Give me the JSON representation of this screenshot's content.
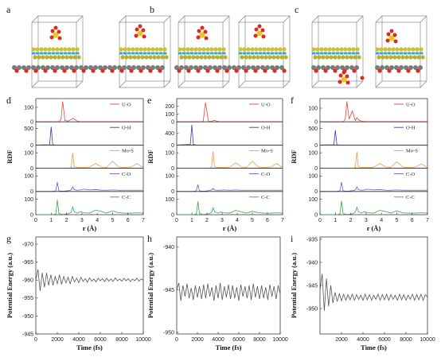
{
  "structure_panels": [
    {
      "label": "a"
    },
    {
      "label": "b"
    },
    {
      "label": "c"
    }
  ],
  "chart_data": [
    {
      "type": "line",
      "label": "d",
      "stacked": true,
      "xlabel": "r (Å)",
      "ylabel": "RDF",
      "xlim": [
        0,
        7
      ],
      "xticks": [
        0,
        1,
        2,
        3,
        4,
        5,
        6,
        7
      ],
      "x": [
        0,
        0.9,
        1.0,
        1.1,
        1.3,
        1.4,
        1.5,
        1.65,
        1.75,
        1.9,
        2.1,
        2.3,
        2.4,
        2.5,
        2.7,
        2.9,
        3.1,
        3.5,
        3.9,
        4.3,
        4.6,
        5.0,
        5.4,
        5.8,
        6.2,
        6.6,
        7
      ],
      "series": [
        {
          "name": "U-O",
          "color": "#e8453c",
          "ylim": [
            0,
            160
          ],
          "yticks": [
            0,
            100
          ],
          "values": [
            0,
            0,
            0,
            0,
            0,
            0,
            0,
            20,
            140,
            10,
            5,
            15,
            25,
            18,
            5,
            1,
            1,
            1,
            1,
            1,
            1,
            1,
            1,
            1,
            1,
            1,
            1
          ]
        },
        {
          "name": "O-H",
          "color": "#3a3ab8",
          "ylim": [
            0,
            700
          ],
          "yticks": [
            0,
            500
          ],
          "values": [
            0,
            10,
            550,
            10,
            0,
            0,
            0,
            0,
            0,
            0,
            0,
            0,
            0,
            0,
            0,
            0,
            0,
            0,
            0,
            0,
            0,
            0,
            0,
            0,
            0,
            0,
            0
          ]
        },
        {
          "name": "Mo-S",
          "color": "#f39a4c",
          "ylim": [
            0,
            150
          ],
          "yticks": [
            0,
            100
          ],
          "values": [
            0,
            0,
            0,
            0,
            0,
            0,
            0,
            0,
            0,
            0,
            0,
            5,
            100,
            10,
            5,
            5,
            5,
            8,
            30,
            8,
            5,
            45,
            8,
            5,
            8,
            30,
            5
          ]
        },
        {
          "name": "C-O",
          "color": "#6a5acd",
          "ylim": [
            0,
            150
          ],
          "yticks": [
            0,
            100
          ],
          "values": [
            0,
            0,
            0,
            0,
            5,
            60,
            5,
            2,
            2,
            3,
            5,
            10,
            30,
            12,
            8,
            10,
            15,
            10,
            12,
            8,
            8,
            10,
            8,
            8,
            8,
            8,
            8
          ]
        },
        {
          "name": "C-C",
          "color": "#3aa64a",
          "ylim": [
            0,
            150
          ],
          "yticks": [
            0,
            100
          ],
          "values": [
            0,
            0,
            0,
            0,
            5,
            95,
            10,
            3,
            2,
            3,
            5,
            15,
            50,
            20,
            10,
            20,
            12,
            10,
            30,
            20,
            10,
            25,
            12,
            10,
            10,
            12,
            10
          ]
        }
      ]
    },
    {
      "type": "line",
      "label": "e",
      "stacked": true,
      "xlabel": "r (Å)",
      "ylabel": "RDF",
      "xlim": [
        0,
        7
      ],
      "xticks": [
        0,
        1,
        2,
        3,
        4,
        5,
        6,
        7
      ],
      "x": [
        0,
        0.9,
        1.0,
        1.1,
        1.3,
        1.4,
        1.5,
        1.65,
        1.75,
        1.9,
        2.1,
        2.3,
        2.4,
        2.5,
        2.7,
        2.9,
        3.1,
        3.5,
        3.9,
        4.3,
        4.6,
        5.0,
        5.4,
        5.8,
        6.2,
        6.6,
        7
      ],
      "series": [
        {
          "name": "U-O",
          "color": "#e8453c",
          "ylim": [
            0,
            300
          ],
          "yticks": [
            0,
            100,
            200
          ],
          "values": [
            0,
            0,
            0,
            0,
            0,
            0,
            0,
            0,
            5,
            250,
            5,
            5,
            15,
            20,
            5,
            2,
            2,
            2,
            2,
            2,
            2,
            2,
            2,
            2,
            2,
            2,
            2
          ]
        },
        {
          "name": "O-H",
          "color": "#3a3ab8",
          "ylim": [
            0,
            800
          ],
          "yticks": [
            0,
            400
          ],
          "values": [
            0,
            20,
            700,
            20,
            0,
            0,
            0,
            0,
            0,
            0,
            0,
            0,
            0,
            0,
            0,
            0,
            0,
            0,
            0,
            0,
            0,
            0,
            0,
            0,
            0,
            0,
            0
          ]
        },
        {
          "name": "Mo-S",
          "color": "#f39a4c",
          "ylim": [
            0,
            150
          ],
          "yticks": [
            0,
            100
          ],
          "values": [
            0,
            0,
            0,
            0,
            0,
            0,
            0,
            0,
            0,
            0,
            0,
            5,
            110,
            10,
            5,
            5,
            5,
            8,
            35,
            8,
            5,
            45,
            8,
            5,
            8,
            30,
            5
          ]
        },
        {
          "name": "C-O",
          "color": "#6a5acd",
          "ylim": [
            0,
            150
          ],
          "yticks": [
            0,
            100
          ],
          "values": [
            0,
            0,
            0,
            0,
            5,
            45,
            5,
            2,
            2,
            3,
            5,
            10,
            20,
            10,
            8,
            8,
            10,
            8,
            10,
            8,
            8,
            8,
            8,
            8,
            8,
            8,
            8
          ]
        },
        {
          "name": "C-C",
          "color": "#3aa64a",
          "ylim": [
            0,
            150
          ],
          "yticks": [
            0,
            100
          ],
          "values": [
            0,
            0,
            0,
            0,
            5,
            85,
            10,
            3,
            2,
            3,
            5,
            15,
            45,
            20,
            10,
            18,
            12,
            10,
            28,
            18,
            10,
            22,
            12,
            10,
            10,
            12,
            10
          ]
        }
      ]
    },
    {
      "type": "line",
      "label": "f",
      "stacked": true,
      "xlabel": "r (Å)",
      "ylabel": "RDF",
      "xlim": [
        0,
        7
      ],
      "xticks": [
        0,
        1,
        2,
        3,
        4,
        5,
        6,
        7
      ],
      "x": [
        0,
        0.9,
        1.0,
        1.1,
        1.3,
        1.4,
        1.5,
        1.65,
        1.75,
        1.9,
        2.1,
        2.3,
        2.4,
        2.5,
        2.7,
        2.9,
        3.1,
        3.5,
        3.9,
        4.3,
        4.6,
        5.0,
        5.4,
        5.8,
        6.2,
        6.6,
        7
      ],
      "series": [
        {
          "name": "U-O",
          "color": "#e8453c",
          "ylim": [
            0,
            170
          ],
          "yticks": [
            0,
            100
          ],
          "values": [
            0,
            0,
            0,
            0,
            0,
            0,
            0,
            20,
            150,
            20,
            80,
            10,
            30,
            15,
            5,
            2,
            2,
            2,
            2,
            2,
            2,
            2,
            2,
            2,
            2,
            2,
            2
          ]
        },
        {
          "name": "O-H",
          "color": "#3a3ab8",
          "ylim": [
            0,
            700
          ],
          "yticks": [
            0,
            500
          ],
          "values": [
            0,
            10,
            450,
            10,
            0,
            0,
            0,
            0,
            0,
            0,
            0,
            0,
            0,
            0,
            0,
            0,
            0,
            0,
            0,
            0,
            0,
            0,
            0,
            0,
            0,
            0,
            0
          ]
        },
        {
          "name": "Mo-S",
          "color": "#f39a4c",
          "ylim": [
            0,
            150
          ],
          "yticks": [
            0,
            100
          ],
          "values": [
            0,
            0,
            0,
            0,
            0,
            0,
            0,
            0,
            0,
            0,
            0,
            5,
            105,
            10,
            5,
            5,
            5,
            8,
            30,
            8,
            5,
            42,
            8,
            5,
            8,
            28,
            5
          ]
        },
        {
          "name": "C-O",
          "color": "#6a5acd",
          "ylim": [
            0,
            150
          ],
          "yticks": [
            0,
            100
          ],
          "values": [
            0,
            0,
            0,
            0,
            5,
            60,
            5,
            2,
            2,
            3,
            5,
            10,
            30,
            12,
            8,
            10,
            15,
            10,
            12,
            8,
            8,
            10,
            8,
            8,
            8,
            8,
            8
          ]
        },
        {
          "name": "C-C",
          "color": "#3aa64a",
          "ylim": [
            0,
            150
          ],
          "yticks": [
            0,
            100
          ],
          "values": [
            0,
            0,
            0,
            0,
            5,
            90,
            10,
            3,
            2,
            3,
            5,
            15,
            48,
            20,
            10,
            20,
            12,
            10,
            28,
            20,
            10,
            25,
            12,
            10,
            10,
            12,
            10
          ]
        }
      ]
    },
    {
      "type": "line",
      "label": "g",
      "xlabel": "Time (fs)",
      "ylabel": "Potential Energy (a.u.)",
      "xlim": [
        0,
        10000
      ],
      "xticks": [
        0,
        2000,
        4000,
        6000,
        8000,
        10000
      ],
      "ylim": [
        -945,
        -972
      ],
      "yticks": [
        -970,
        -965,
        -960,
        -955,
        -950,
        -945
      ],
      "x": [
        0,
        200,
        400,
        600,
        800,
        1000,
        1200,
        1400,
        1600,
        1800,
        2000,
        2200,
        2400,
        2600,
        2800,
        3000,
        3200,
        3400,
        3600,
        3800,
        4000,
        4200,
        4400,
        4600,
        4800,
        5000,
        5200,
        5400,
        5600,
        5800,
        6000,
        6200,
        6400,
        6600,
        6800,
        7000,
        7200,
        7400,
        7600,
        7800,
        8000,
        8200,
        8400,
        8600,
        8800,
        9000,
        9200,
        9400,
        9600,
        9800,
        10000
      ],
      "series": [
        {
          "name": "Potential Energy",
          "color": "#555555",
          "values": [
            -960,
            -963,
            -957,
            -962,
            -958,
            -962,
            -958.5,
            -961.5,
            -958.5,
            -961,
            -959,
            -961.5,
            -958.8,
            -961,
            -959.2,
            -960.8,
            -959,
            -961,
            -959.5,
            -960.5,
            -959.3,
            -960.8,
            -959.6,
            -960.4,
            -959.4,
            -960.6,
            -959.7,
            -960.3,
            -959.5,
            -960.5,
            -959.8,
            -960.4,
            -959.6,
            -960.5,
            -959.7,
            -960.3,
            -959.6,
            -960.6,
            -959.8,
            -960.3,
            -959.7,
            -960.5,
            -959.8,
            -960.4,
            -959.6,
            -960.3,
            -959.8,
            -960.5,
            -959.7,
            -960.3,
            -960
          ]
        }
      ]
    },
    {
      "type": "line",
      "label": "h",
      "xlabel": "Time (fs)",
      "ylabel": "Potential Energy (a.u.)",
      "xlim": [
        0,
        10000
      ],
      "xticks": [
        0,
        2000,
        4000,
        6000,
        8000,
        10000
      ],
      "ylim": [
        -950.2,
        -938.8
      ],
      "yticks": [
        -940,
        -945,
        -950
      ],
      "x": [
        0,
        200,
        400,
        600,
        800,
        1000,
        1200,
        1400,
        1600,
        1800,
        2000,
        2200,
        2400,
        2600,
        2800,
        3000,
        3200,
        3400,
        3600,
        3800,
        4000,
        4200,
        4400,
        4600,
        4800,
        5000,
        5200,
        5400,
        5600,
        5800,
        6000,
        6200,
        6400,
        6600,
        6800,
        7000,
        7200,
        7400,
        7600,
        7800,
        8000,
        8200,
        8400,
        8600,
        8800,
        9000,
        9200,
        9400,
        9600,
        9800,
        10000
      ],
      "series": [
        {
          "name": "Potential Energy",
          "color": "#555555",
          "values": [
            -945,
            -944.2,
            -946.3,
            -944.5,
            -945.8,
            -944.3,
            -946,
            -944.8,
            -946.2,
            -944.5,
            -945.9,
            -944.6,
            -946.1,
            -944.4,
            -946,
            -944.3,
            -945.8,
            -944.7,
            -946.3,
            -944.5,
            -946,
            -944.2,
            -946.2,
            -944.6,
            -945.9,
            -944.4,
            -946.1,
            -944.5,
            -946,
            -944.7,
            -946.3,
            -944.4,
            -945.8,
            -944.6,
            -946,
            -944.5,
            -946.2,
            -944.3,
            -945.9,
            -944.6,
            -946.1,
            -944.5,
            -946,
            -944.7,
            -946.2,
            -944.4,
            -945.8,
            -944.6,
            -946.1,
            -944.5,
            -945.5
          ]
        }
      ]
    },
    {
      "type": "line",
      "label": "i",
      "xlabel": "Time (fs)",
      "ylabel": "Potential Energy (a.u.)",
      "xlim": [
        0,
        10000
      ],
      "xticks": [
        2000,
        4000,
        6000,
        8000,
        10000
      ],
      "ylim": [
        -955.5,
        -934.5
      ],
      "yticks": [
        -935,
        -940,
        -945,
        -950
      ],
      "x": [
        0,
        200,
        400,
        600,
        800,
        1000,
        1200,
        1400,
        1600,
        1800,
        2000,
        2200,
        2400,
        2600,
        2800,
        3000,
        3200,
        3400,
        3600,
        3800,
        4000,
        4200,
        4400,
        4600,
        4800,
        5000,
        5200,
        5400,
        5600,
        5800,
        6000,
        6200,
        6400,
        6600,
        6800,
        7000,
        7200,
        7400,
        7600,
        7800,
        8000,
        8200,
        8400,
        8600,
        8800,
        9000,
        9200,
        9400,
        9600,
        9800,
        10000
      ],
      "series": [
        {
          "name": "Potential Energy",
          "color": "#555555",
          "values": [
            -946,
            -942.5,
            -950.5,
            -943.5,
            -949.5,
            -945,
            -948.8,
            -946.5,
            -948.5,
            -946.8,
            -948.3,
            -946.9,
            -948.2,
            -947,
            -948.1,
            -946.9,
            -948.2,
            -947,
            -948,
            -947.1,
            -948.2,
            -946.9,
            -948.1,
            -947,
            -948.2,
            -947.1,
            -948,
            -946.9,
            -948.2,
            -947,
            -948.1,
            -946.9,
            -948.2,
            -947,
            -948,
            -947.1,
            -948.2,
            -946.9,
            -948.1,
            -947,
            -948.2,
            -947.1,
            -948,
            -946.9,
            -948.2,
            -947,
            -948.1,
            -946.9,
            -948.2,
            -947,
            -947.5
          ]
        }
      ]
    }
  ]
}
